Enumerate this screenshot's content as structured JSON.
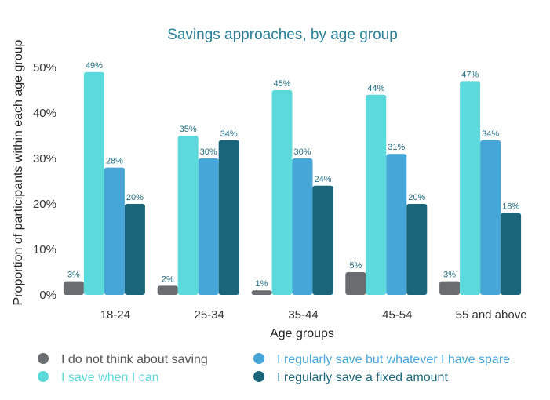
{
  "chart_data": {
    "type": "bar",
    "title": "Savings approaches, by age group",
    "xlabel": "Age groups",
    "ylabel": "Proportion of participants within each age group",
    "ylim": [
      0,
      50
    ],
    "yticks": [
      "0%",
      "10%",
      "20%",
      "30%",
      "40%",
      "50%"
    ],
    "grid": false,
    "legend_position": "bottom",
    "categories": [
      "18-24",
      "25-34",
      "35-44",
      "45-54",
      "55 and above"
    ],
    "series": [
      {
        "name": "I do not think about saving",
        "color": "#6a6d70",
        "label_color": "#555555",
        "values": [
          3,
          2,
          1,
          5,
          3
        ],
        "labels": [
          "3%",
          "2%",
          "1%",
          "5%",
          "3%"
        ]
      },
      {
        "name": "I save when I can",
        "color": "#5cd9db",
        "label_color": "#3ec4c9",
        "values": [
          49,
          35,
          45,
          44,
          47
        ],
        "labels": [
          "49%",
          "35%",
          "45%",
          "44%",
          "47%"
        ]
      },
      {
        "name": "I regularly save but whatever I have spare",
        "color": "#47a6d8",
        "label_color": "#3f9ad0",
        "values": [
          28,
          30,
          30,
          31,
          34
        ],
        "labels": [
          "28%",
          "30%",
          "30%",
          "31%",
          "34%"
        ]
      },
      {
        "name": "I regularly save a fixed amount",
        "color": "#1a657a",
        "label_color": "#1a5f73",
        "values": [
          20,
          34,
          24,
          20,
          18
        ],
        "labels": [
          "20%",
          "34%",
          "24%",
          "20%",
          "18%"
        ]
      }
    ]
  }
}
